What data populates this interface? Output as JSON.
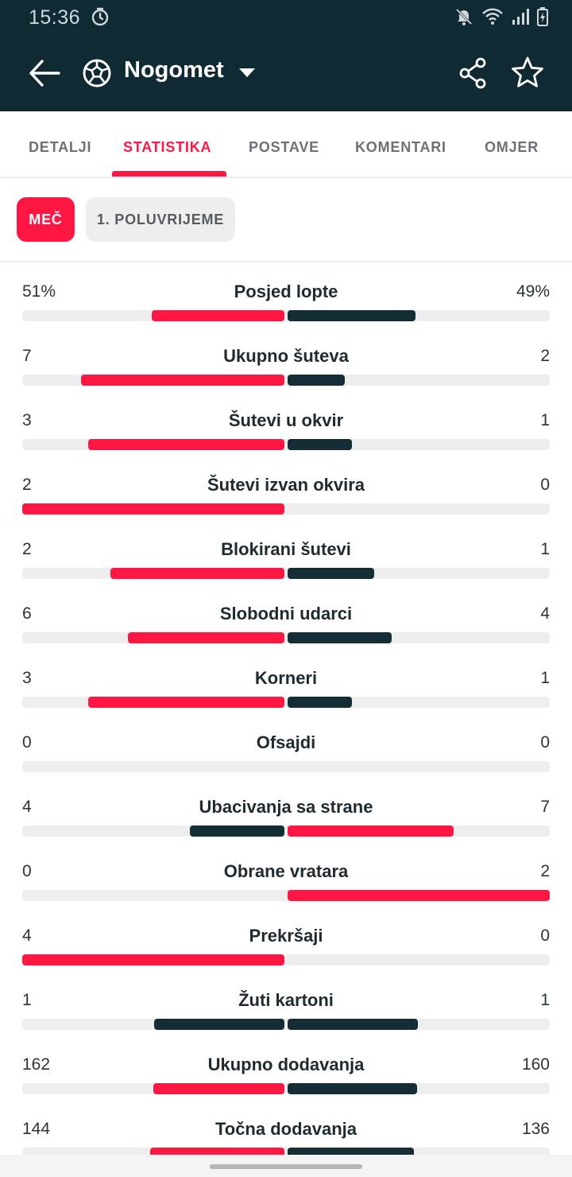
{
  "status_bar": {
    "time": "15:36"
  },
  "app_bar": {
    "title": "Nogomet"
  },
  "tabs": [
    {
      "label": "DETALJI",
      "active": false
    },
    {
      "label": "STATISTIKA",
      "active": true
    },
    {
      "label": "POSTAVE",
      "active": false
    },
    {
      "label": "KOMENTARI",
      "active": false
    },
    {
      "label": "OMJER",
      "active": false
    }
  ],
  "periods": [
    {
      "label": "MEČ",
      "active": true
    },
    {
      "label": "1. POLUVRIJEME",
      "active": false
    }
  ],
  "colors": {
    "header": "#0f2a33",
    "accent": "#ff1744",
    "dark_bar": "#152e36",
    "bar_track": "#eeeeee"
  },
  "stats": [
    {
      "label": "Posjed lopte",
      "home": "51%",
      "away": "49%",
      "home_val": 51,
      "away_val": 49
    },
    {
      "label": "Ukupno šuteva",
      "home": "7",
      "away": "2",
      "home_val": 7,
      "away_val": 2
    },
    {
      "label": "Šutevi u okvir",
      "home": "3",
      "away": "1",
      "home_val": 3,
      "away_val": 1
    },
    {
      "label": "Šutevi izvan okvira",
      "home": "2",
      "away": "0",
      "home_val": 2,
      "away_val": 0
    },
    {
      "label": "Blokirani šutevi",
      "home": "2",
      "away": "1",
      "home_val": 2,
      "away_val": 1
    },
    {
      "label": "Slobodni udarci",
      "home": "6",
      "away": "4",
      "home_val": 6,
      "away_val": 4
    },
    {
      "label": "Korneri",
      "home": "3",
      "away": "1",
      "home_val": 3,
      "away_val": 1
    },
    {
      "label": "Ofsajdi",
      "home": "0",
      "away": "0",
      "home_val": 0,
      "away_val": 0
    },
    {
      "label": "Ubacivanja sa strane",
      "home": "4",
      "away": "7",
      "home_val": 4,
      "away_val": 7
    },
    {
      "label": "Obrane vratara",
      "home": "0",
      "away": "2",
      "home_val": 0,
      "away_val": 2
    },
    {
      "label": "Prekršaji",
      "home": "4",
      "away": "0",
      "home_val": 4,
      "away_val": 0
    },
    {
      "label": "Žuti kartoni",
      "home": "1",
      "away": "1",
      "home_val": 1,
      "away_val": 1
    },
    {
      "label": "Ukupno dodavanja",
      "home": "162",
      "away": "160",
      "home_val": 162,
      "away_val": 160
    },
    {
      "label": "Točna dodavanja",
      "home": "144",
      "away": "136",
      "home_val": 144,
      "away_val": 136
    }
  ]
}
